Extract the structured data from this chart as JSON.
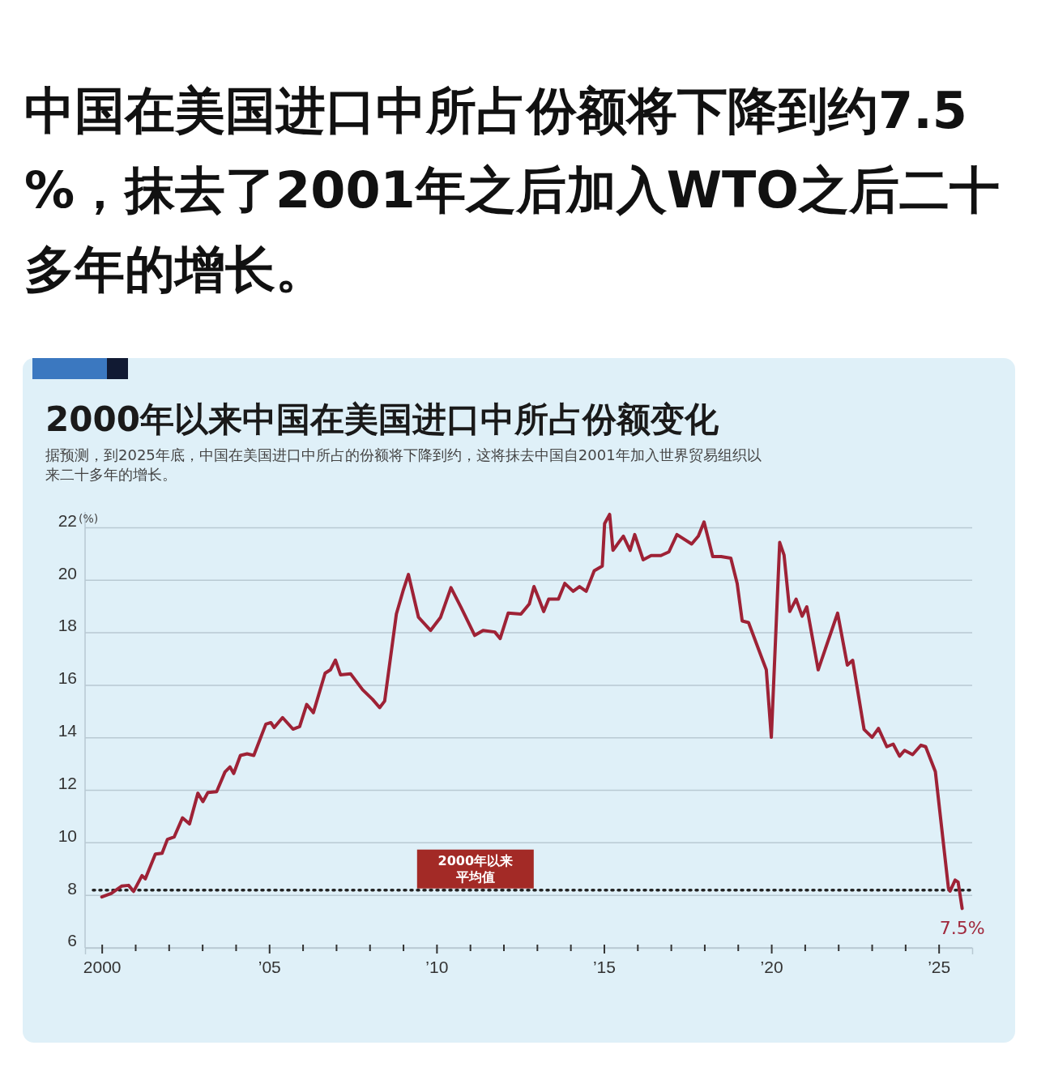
{
  "chart_data": {
    "type": "line",
    "title": "中国在美国进口中所占份额将下降到约7.5%，抹去了2001年之后加入WTO之后二十多年的增长。",
    "subtitle": "2000年以来中国在美国进口中所占份额变化",
    "ylabel": "(%)",
    "annotations": [
      "据预测，到2025年底，中国在美国进口中所占的份额将下降到约，这将抹去中国自2001年加入世界贸易组织以来二十多年的增长。",
      {
        "text": "7.5%",
        "x": 2025.7,
        "y": 7.5
      }
    ],
    "x": [
      2000.0,
      2000.28,
      2000.59,
      2000.8,
      2000.95,
      2001.2,
      2001.3,
      2001.6,
      2001.8,
      2001.96,
      2002.16,
      2002.41,
      2002.62,
      2002.87,
      2003.02,
      2003.17,
      2003.43,
      2003.68,
      2003.83,
      2003.94,
      2004.14,
      2004.34,
      2004.54,
      2004.9,
      2005.05,
      2005.15,
      2005.4,
      2005.71,
      2005.91,
      2006.12,
      2006.32,
      2006.67,
      2006.83,
      2006.98,
      2007.13,
      2007.43,
      2007.79,
      2008.09,
      2008.3,
      2008.45,
      2008.8,
      2009.0,
      2009.16,
      2009.46,
      2009.82,
      2010.12,
      2010.43,
      2010.73,
      2011.14,
      2011.39,
      2011.74,
      2011.9,
      2012.14,
      2012.52,
      2012.77,
      2012.91,
      2013.06,
      2013.2,
      2013.35,
      2013.64,
      2013.83,
      2014.08,
      2014.27,
      2014.47,
      2014.71,
      2014.95,
      2015.02,
      2015.17,
      2015.27,
      2015.58,
      2015.78,
      2015.92,
      2016.17,
      2016.41,
      2016.7,
      2016.94,
      2017.18,
      2017.62,
      2017.82,
      2017.99,
      2018.25,
      2018.5,
      2018.79,
      2018.98,
      2019.13,
      2019.32,
      2019.76,
      2019.85,
      2020.0,
      2020.25,
      2020.38,
      2020.55,
      2020.74,
      2020.92,
      2021.06,
      2021.4,
      2021.98,
      2022.27,
      2022.43,
      2022.77,
      2023.01,
      2023.2,
      2023.45,
      2023.64,
      2023.83,
      2023.98,
      2024.22,
      2024.47,
      2024.61,
      2024.9,
      2025.29,
      2025.34,
      2025.49,
      2025.58,
      2025.7
    ],
    "series": [
      {
        "color": "#9e2236",
        "values": [
          7.94,
          8.07,
          8.35,
          8.38,
          8.15,
          8.75,
          8.63,
          9.57,
          9.6,
          10.13,
          10.22,
          10.95,
          10.72,
          11.89,
          11.57,
          11.92,
          11.95,
          12.7,
          12.89,
          12.64,
          13.33,
          13.39,
          13.33,
          14.52,
          14.58,
          14.39,
          14.77,
          14.33,
          14.43,
          15.27,
          14.96,
          16.46,
          16.59,
          16.96,
          16.4,
          16.44,
          15.83,
          15.46,
          15.15,
          15.4,
          18.72,
          19.6,
          20.22,
          18.59,
          18.09,
          18.59,
          19.72,
          18.97,
          17.9,
          18.09,
          18.03,
          17.78,
          18.75,
          18.71,
          19.1,
          19.76,
          19.28,
          18.81,
          19.28,
          19.28,
          19.88,
          19.58,
          19.76,
          19.58,
          20.36,
          20.54,
          22.16,
          22.51,
          21.14,
          21.68,
          21.14,
          21.74,
          20.78,
          20.94,
          20.94,
          21.08,
          21.74,
          21.38,
          21.68,
          22.22,
          20.9,
          20.9,
          20.84,
          19.88,
          18.45,
          18.39,
          16.89,
          16.59,
          14.02,
          21.44,
          20.96,
          18.81,
          19.28,
          18.63,
          18.99,
          16.59,
          18.75,
          16.77,
          16.95,
          14.32,
          14.02,
          14.36,
          13.66,
          13.76,
          13.3,
          13.52,
          13.36,
          13.72,
          13.66,
          12.71,
          8.28,
          8.16,
          8.58,
          8.5,
          7.5
        ]
      }
    ],
    "xlim": [
      1999.5,
      2026
    ],
    "xticks": [
      {
        "value": 2000,
        "label": "2000"
      },
      {
        "value": 2001,
        "label": null
      },
      {
        "value": 2002,
        "label": null
      },
      {
        "value": 2003,
        "label": null
      },
      {
        "value": 2004,
        "label": null
      },
      {
        "value": 2005,
        "label": "’05"
      },
      {
        "value": 2006,
        "label": null
      },
      {
        "value": 2007,
        "label": null
      },
      {
        "value": 2008,
        "label": null
      },
      {
        "value": 2009,
        "label": null
      },
      {
        "value": 2010,
        "label": "’10"
      },
      {
        "value": 2011,
        "label": null
      },
      {
        "value": 2012,
        "label": null
      },
      {
        "value": 2013,
        "label": null
      },
      {
        "value": 2014,
        "label": null
      },
      {
        "value": 2015,
        "label": "’15"
      },
      {
        "value": 2016,
        "label": null
      },
      {
        "value": 2017,
        "label": null
      },
      {
        "value": 2018,
        "label": null
      },
      {
        "value": 2019,
        "label": null
      },
      {
        "value": 2020,
        "label": "’20"
      },
      {
        "value": 2021,
        "label": null
      },
      {
        "value": 2022,
        "label": null
      },
      {
        "value": 2023,
        "label": null
      },
      {
        "value": 2024,
        "label": null
      },
      {
        "value": 2025,
        "label": "’25"
      }
    ],
    "ylim": [
      6,
      22.6
    ],
    "yticks": [
      6,
      8,
      10,
      12,
      14,
      16,
      18,
      20,
      22
    ],
    "ref_lines": [
      {
        "axis": "y",
        "value": 8.2,
        "label": "2000年以来平均值",
        "color": "#222222",
        "line_style": "dotted"
      }
    ],
    "grid": "y",
    "marker": "none",
    "line_style": "solid"
  }
}
